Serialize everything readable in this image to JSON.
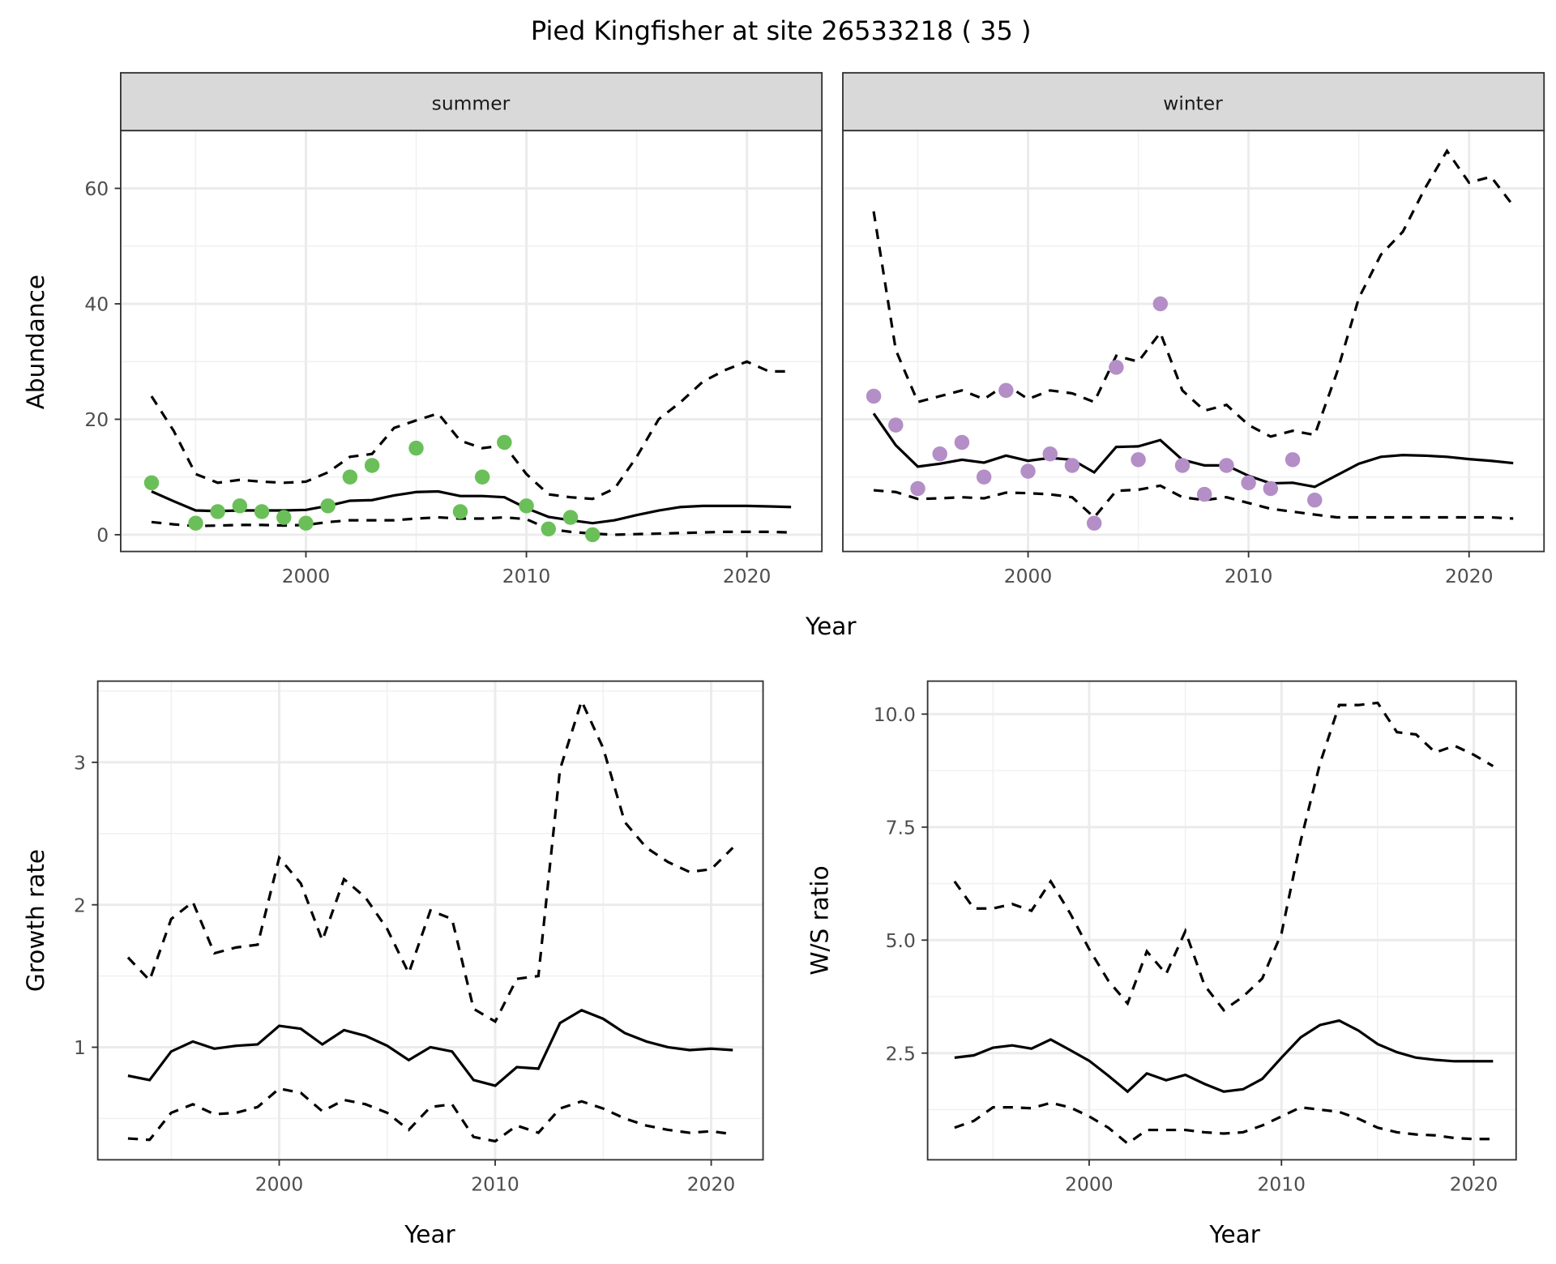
{
  "title": "Pied Kingfisher at site 26533218 ( 35 )",
  "chart_data": [
    {
      "type": "line",
      "facet": "summer",
      "xlabel": "Year",
      "ylabel": "Abundance",
      "xlim": [
        1991.6,
        2023.4
      ],
      "ylim": [
        -2.9,
        70
      ],
      "xticks": [
        2000,
        2010,
        2020
      ],
      "yticks": [
        0,
        20,
        40,
        60
      ],
      "grid": true,
      "point_color": "#6BBF59",
      "years": [
        1993,
        1994,
        1995,
        1996,
        1997,
        1998,
        1999,
        2000,
        2001,
        2002,
        2003,
        2004,
        2005,
        2006,
        2007,
        2008,
        2009,
        2010,
        2011,
        2012,
        2013,
        2014,
        2015,
        2016,
        2017,
        2018,
        2019,
        2020,
        2021,
        2022
      ],
      "median": [
        7.5,
        5.8,
        4.2,
        4.1,
        4.2,
        4.2,
        4.2,
        4.3,
        5.0,
        5.9,
        6.0,
        6.8,
        7.4,
        7.5,
        6.7,
        6.7,
        6.5,
        4.6,
        3.1,
        2.5,
        2.0,
        2.5,
        3.4,
        4.2,
        4.8,
        5.0,
        5.0,
        5.0,
        4.9,
        4.8
      ],
      "upper": [
        24,
        18,
        10.5,
        9,
        9.5,
        9.2,
        9,
        9.2,
        10.8,
        13.5,
        14,
        18.5,
        19.8,
        21,
        16.3,
        15,
        15.5,
        10.5,
        7,
        6.5,
        6.2,
        8,
        13.5,
        20,
        23,
        26.5,
        28.5,
        30,
        28.3,
        28.3
      ],
      "lower": [
        2.2,
        1.8,
        1.5,
        1.6,
        1.7,
        1.7,
        1.6,
        1.7,
        2.2,
        2.5,
        2.5,
        2.5,
        2.8,
        3.0,
        2.8,
        2.8,
        3.0,
        2.7,
        1.0,
        0.5,
        0.2,
        0.0,
        0.1,
        0.2,
        0.3,
        0.4,
        0.5,
        0.5,
        0.5,
        0.4
      ],
      "points": {
        "x": [
          1993,
          1995,
          1996,
          1997,
          1998,
          1999,
          2000,
          2001,
          2002,
          2003,
          2005,
          2007,
          2008,
          2009,
          2010,
          2011,
          2012,
          2013
        ],
        "y": [
          9,
          2,
          4,
          5,
          4,
          3,
          2,
          5,
          10,
          12,
          15,
          4,
          10,
          16,
          5,
          1,
          3,
          0
        ]
      }
    },
    {
      "type": "line",
      "facet": "winter",
      "xlabel": "Year",
      "ylabel": "Abundance",
      "xlim": [
        1991.6,
        2023.4
      ],
      "ylim": [
        -2.9,
        70
      ],
      "xticks": [
        2000,
        2010,
        2020
      ],
      "yticks": [
        0,
        20,
        40,
        60
      ],
      "grid": true,
      "point_color": "#B48EC6",
      "years": [
        1993,
        1994,
        1995,
        1996,
        1997,
        1998,
        1999,
        2000,
        2001,
        2002,
        2003,
        2004,
        2005,
        2006,
        2007,
        2008,
        2009,
        2010,
        2011,
        2012,
        2013,
        2014,
        2015,
        2016,
        2017,
        2018,
        2019,
        2020,
        2021,
        2022
      ],
      "median": [
        21,
        15.5,
        11.8,
        12.3,
        13,
        12.5,
        13.7,
        12.8,
        13.3,
        13,
        10.8,
        15.2,
        15.3,
        16.4,
        13,
        12,
        12,
        10.2,
        8.9,
        9.0,
        8.3,
        10.3,
        12.3,
        13.5,
        13.8,
        13.7,
        13.5,
        13.1,
        12.8,
        12.4
      ],
      "upper": [
        56,
        32,
        23,
        24,
        25,
        23.5,
        26,
        23.5,
        25,
        24.5,
        23,
        31,
        30,
        35,
        25,
        21.5,
        22.5,
        19,
        17,
        18,
        17.3,
        28,
        41,
        48.5,
        52.5,
        60,
        66.5,
        61,
        62,
        57
      ],
      "lower": [
        7.7,
        7.4,
        6.2,
        6.3,
        6.5,
        6.3,
        7.3,
        7.2,
        7.0,
        6.5,
        3.0,
        7.6,
        7.8,
        8.5,
        6.5,
        6.0,
        6.5,
        5.5,
        4.5,
        4.0,
        3.5,
        3.0,
        3.0,
        3.0,
        3.0,
        3.0,
        3.0,
        3.0,
        3.0,
        2.8
      ],
      "points": {
        "x": [
          1993,
          1994,
          1995,
          1996,
          1997,
          1998,
          1999,
          2000,
          2001,
          2002,
          2003,
          2004,
          2005,
          2006,
          2007,
          2008,
          2009,
          2010,
          2011,
          2012,
          2013
        ],
        "y": [
          24,
          19,
          8,
          14,
          16,
          10,
          25,
          11,
          14,
          12,
          2,
          29,
          13,
          40,
          12,
          7,
          12,
          9,
          8,
          13,
          6
        ]
      }
    },
    {
      "type": "line",
      "xlabel": "Year",
      "ylabel": "Growth rate",
      "xlim": [
        1991.6,
        2022.4
      ],
      "ylim": [
        0.21,
        3.57
      ],
      "xticks": [
        2000,
        2010,
        2020
      ],
      "yticks": [
        1,
        2,
        3
      ],
      "grid": true,
      "years": [
        1993,
        1994,
        1995,
        1996,
        1997,
        1998,
        1999,
        2000,
        2001,
        2002,
        2003,
        2004,
        2005,
        2006,
        2007,
        2008,
        2009,
        2010,
        2011,
        2012,
        2013,
        2014,
        2015,
        2016,
        2017,
        2018,
        2019,
        2020,
        2021
      ],
      "median": [
        0.8,
        0.77,
        0.97,
        1.04,
        0.99,
        1.01,
        1.02,
        1.15,
        1.13,
        1.02,
        1.12,
        1.08,
        1.01,
        0.91,
        1.0,
        0.97,
        0.77,
        0.73,
        0.86,
        0.85,
        1.17,
        1.26,
        1.2,
        1.1,
        1.04,
        1.0,
        0.98,
        0.99,
        0.98
      ],
      "upper": [
        1.63,
        1.47,
        1.9,
        2.02,
        1.66,
        1.7,
        1.72,
        2.33,
        2.15,
        1.75,
        2.18,
        2.05,
        1.83,
        1.52,
        1.96,
        1.9,
        1.27,
        1.18,
        1.48,
        1.5,
        2.95,
        3.43,
        3.1,
        2.58,
        2.4,
        2.3,
        2.23,
        2.25,
        2.4
      ],
      "lower": [
        0.36,
        0.35,
        0.54,
        0.6,
        0.53,
        0.54,
        0.58,
        0.71,
        0.68,
        0.55,
        0.63,
        0.6,
        0.54,
        0.42,
        0.58,
        0.6,
        0.37,
        0.34,
        0.45,
        0.4,
        0.57,
        0.62,
        0.57,
        0.5,
        0.45,
        0.42,
        0.4,
        0.41,
        0.39
      ]
    },
    {
      "type": "line",
      "xlabel": "Year",
      "ylabel": "W/S ratio",
      "xlim": [
        1991.6,
        2022.2
      ],
      "ylim": [
        0.14,
        10.73
      ],
      "xticks": [
        2000,
        2010,
        2020
      ],
      "yticks": [
        2.5,
        5.0,
        7.5,
        10.0
      ],
      "ytick_labels": [
        "2.5",
        "5.0",
        "7.5",
        "10.0"
      ],
      "grid": true,
      "years": [
        1993,
        1994,
        1995,
        1996,
        1997,
        1998,
        1999,
        2000,
        2001,
        2002,
        2003,
        2004,
        2005,
        2006,
        2007,
        2008,
        2009,
        2010,
        2011,
        2012,
        2013,
        2014,
        2015,
        2016,
        2017,
        2018,
        2019,
        2020,
        2021
      ],
      "median": [
        2.4,
        2.45,
        2.62,
        2.67,
        2.6,
        2.8,
        2.57,
        2.33,
        2.0,
        1.65,
        2.05,
        1.9,
        2.02,
        1.82,
        1.65,
        1.7,
        1.93,
        2.4,
        2.85,
        3.12,
        3.22,
        3.0,
        2.7,
        2.52,
        2.4,
        2.35,
        2.32,
        2.32,
        2.32
      ],
      "upper": [
        6.3,
        5.7,
        5.7,
        5.8,
        5.65,
        6.3,
        5.6,
        4.8,
        4.1,
        3.6,
        4.75,
        4.25,
        5.2,
        4.0,
        3.45,
        3.75,
        4.15,
        5.15,
        7.2,
        8.9,
        10.2,
        10.2,
        10.25,
        9.6,
        9.55,
        9.15,
        9.3,
        9.1,
        8.85
      ],
      "lower": [
        0.85,
        1.0,
        1.3,
        1.3,
        1.28,
        1.4,
        1.3,
        1.1,
        0.85,
        0.5,
        0.8,
        0.8,
        0.8,
        0.75,
        0.72,
        0.75,
        0.9,
        1.1,
        1.3,
        1.25,
        1.2,
        1.05,
        0.85,
        0.75,
        0.7,
        0.68,
        0.62,
        0.6,
        0.6
      ]
    }
  ]
}
